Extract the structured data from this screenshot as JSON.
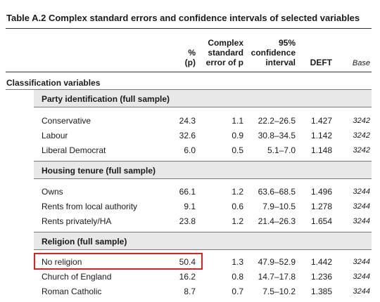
{
  "title": "Table A.2 Complex standard errors and confidence intervals of selected variables",
  "headers": {
    "pct": [
      "%",
      "(p)"
    ],
    "se": [
      "Complex",
      "standard",
      "error of p"
    ],
    "ci": [
      "95%",
      "confidence",
      "interval"
    ],
    "deft": "DEFT",
    "base": "Base"
  },
  "section_label": "Classification variables",
  "groups": [
    {
      "title": "Party identification (full sample)",
      "rows": [
        {
          "label": "Conservative",
          "pct": "24.3",
          "se": "1.1",
          "ci": "22.2–26.5",
          "deft": "1.427",
          "base": "3242"
        },
        {
          "label": "Labour",
          "pct": "32.6",
          "se": "0.9",
          "ci": "30.8–34.5",
          "deft": "1.142",
          "base": "3242"
        },
        {
          "label": "Liberal Democrat",
          "pct": "6.0",
          "se": "0.5",
          "ci": "5.1–7.0",
          "deft": "1.148",
          "base": "3242"
        }
      ]
    },
    {
      "title": "Housing tenure (full sample)",
      "rows": [
        {
          "label": "Owns",
          "pct": "66.1",
          "se": "1.2",
          "ci": "63.6–68.5",
          "deft": "1.496",
          "base": "3244"
        },
        {
          "label": "Rents from local authority",
          "pct": "9.1",
          "se": "0.6",
          "ci": "7.9–10.5",
          "deft": "1.278",
          "base": "3244"
        },
        {
          "label": "Rents privately/HA",
          "pct": "23.8",
          "se": "1.2",
          "ci": "21.4–26.3",
          "deft": "1.654",
          "base": "3244"
        }
      ]
    },
    {
      "title": "Religion (full sample)",
      "rows": [
        {
          "label": "No religion",
          "pct": "50.4",
          "se": "1.3",
          "ci": "47.9–52.9",
          "deft": "1.442",
          "base": "3244"
        },
        {
          "label": "Church of England",
          "pct": "16.2",
          "se": "0.8",
          "ci": "14.7–17.8",
          "deft": "1.236",
          "base": "3244"
        },
        {
          "label": "Roman Catholic",
          "pct": "8.7",
          "se": "0.7",
          "ci": "7.5–10.2",
          "deft": "1.385",
          "base": "3244"
        }
      ]
    }
  ],
  "highlight_color": "#e02020"
}
